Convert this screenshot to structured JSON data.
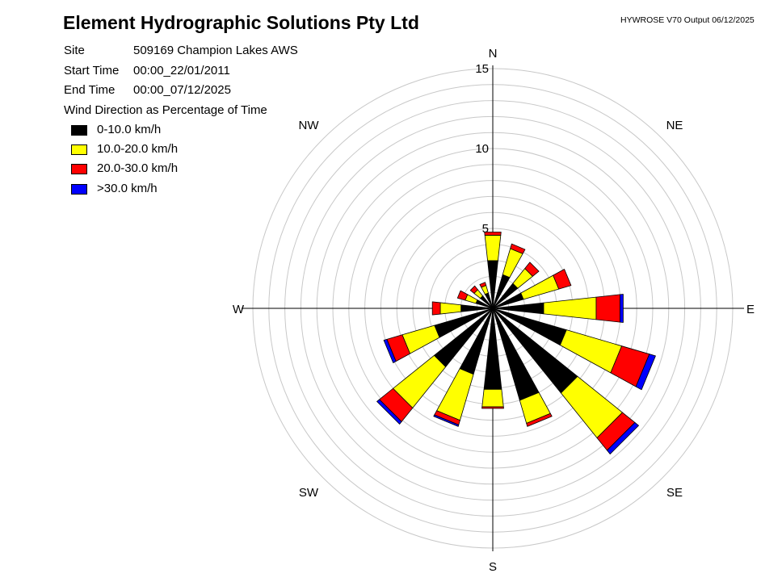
{
  "header": {
    "title": "Element Hydrographic Solutions Pty Ltd",
    "version": "HYWROSE V70  Output 06/12/2025"
  },
  "info": {
    "site_label": "Site",
    "site_value": "509169  Champion Lakes AWS",
    "start_label": "Start Time",
    "start_value": "00:00_22/01/2011",
    "end_label": "End Time",
    "end_value": "00:00_07/12/2025"
  },
  "chart_data": {
    "type": "wind-rose",
    "title": "Wind Direction as Percentage of Time",
    "radial_max": 15,
    "radial_ticks": [
      5,
      10,
      15
    ],
    "radial_tick_labels": [
      "5",
      "10",
      "15"
    ],
    "ring_step": 1,
    "direction_labels": [
      "N",
      "NE",
      "E",
      "SE",
      "S",
      "SW",
      "W",
      "NW"
    ],
    "speed_bins": [
      {
        "name": "0-10.0 km/h",
        "color": "#000000"
      },
      {
        "name": "10.0-20.0 km/h",
        "color": "#ffff00"
      },
      {
        "name": "20.0-30.0 km/h",
        "color": "#ff0000"
      },
      {
        "name": ">30.0 km/h",
        "color": "#0000ff"
      }
    ],
    "directions": [
      {
        "bearing": 0,
        "values": [
          3.0,
          1.6,
          0.2,
          0.0
        ]
      },
      {
        "bearing": 22.5,
        "values": [
          2.2,
          1.7,
          0.3,
          0.0
        ]
      },
      {
        "bearing": 45,
        "values": [
          2.0,
          1.2,
          0.5,
          0.0
        ]
      },
      {
        "bearing": 67.5,
        "values": [
          2.0,
          2.3,
          0.8,
          0.0
        ]
      },
      {
        "bearing": 90,
        "values": [
          3.2,
          3.3,
          1.5,
          0.2
        ]
      },
      {
        "bearing": 112.5,
        "values": [
          4.8,
          3.6,
          1.8,
          0.4
        ]
      },
      {
        "bearing": 135,
        "values": [
          6.8,
          3.6,
          1.0,
          0.3
        ]
      },
      {
        "bearing": 157.5,
        "values": [
          6.0,
          1.5,
          0.2,
          0.0
        ]
      },
      {
        "bearing": 180,
        "values": [
          5.1,
          1.1,
          0.1,
          0.0
        ]
      },
      {
        "bearing": 202.5,
        "values": [
          4.3,
          3.0,
          0.3,
          0.1
        ]
      },
      {
        "bearing": 225,
        "values": [
          4.7,
          3.3,
          1.1,
          0.2
        ]
      },
      {
        "bearing": 247.5,
        "values": [
          3.8,
          2.1,
          1.0,
          0.2
        ]
      },
      {
        "bearing": 270,
        "values": [
          2.0,
          1.3,
          0.5,
          0.0
        ]
      },
      {
        "bearing": 292.5,
        "values": [
          1.1,
          0.7,
          0.5,
          0.0
        ]
      },
      {
        "bearing": 315,
        "values": [
          1.0,
          0.5,
          0.3,
          0.0
        ]
      },
      {
        "bearing": 337.5,
        "values": [
          1.0,
          0.5,
          0.2,
          0.0
        ]
      }
    ]
  }
}
